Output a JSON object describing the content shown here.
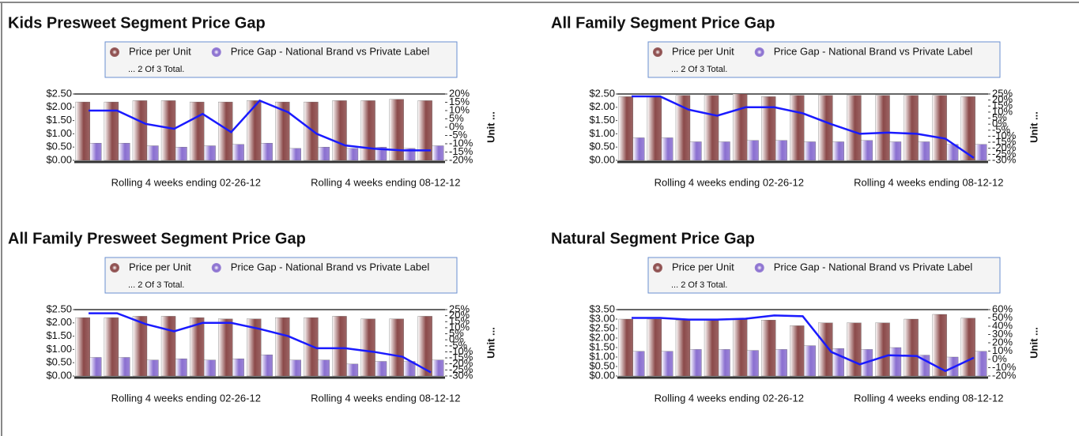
{
  "chart_data": [
    {
      "type": "bar",
      "title": "Kids Presweet Segment Price Gap",
      "legend_note": "... 2 Of 3 Total.",
      "y2label": "Unit ...",
      "categories": [
        null,
        null,
        null,
        "Rolling 4 weeks ending 02-26-12",
        null,
        null,
        null,
        null,
        null,
        null,
        "Rolling 4 weeks ending 08-12-12",
        null,
        null
      ],
      "series": [
        {
          "name": "Price per Unit",
          "color": "#8b4a4a",
          "values": [
            2.2,
            2.2,
            2.25,
            2.25,
            2.2,
            2.2,
            2.25,
            2.2,
            2.2,
            2.25,
            2.25,
            2.3,
            2.25
          ]
        },
        {
          "name": "Price Gap - National Brand vs Private Label",
          "color": "#8a6fd0",
          "values": [
            0.65,
            0.65,
            0.55,
            0.5,
            0.55,
            0.6,
            0.65,
            0.45,
            0.5,
            0.45,
            0.5,
            0.45,
            0.55
          ]
        },
        {
          "type": "line",
          "axis": "y2",
          "color": "#1a1aff",
          "values": [
            10,
            10,
            2,
            -1,
            8,
            -3,
            16,
            9,
            -4,
            -11,
            -13,
            -14,
            -14
          ]
        }
      ],
      "ylim": [
        0,
        2.5
      ],
      "yticks": [
        {
          "value": 0,
          "label": "$0.00"
        },
        {
          "value": 0.5,
          "label": "$0.50"
        },
        {
          "value": 1,
          "label": "$1.00"
        },
        {
          "value": 1.5,
          "label": "$1.50"
        },
        {
          "value": 2,
          "label": "$2.00"
        },
        {
          "value": 2.5,
          "label": "$2.50"
        }
      ],
      "y2lim": [
        -20,
        20
      ],
      "y2ticks": [
        {
          "value": 20,
          "label": "20%"
        },
        {
          "value": 15,
          "label": "15%"
        },
        {
          "value": 10,
          "label": "10%"
        },
        {
          "value": 5,
          "label": "5%"
        },
        {
          "value": 0,
          "label": "0%"
        },
        {
          "value": -5,
          "label": "-5%"
        },
        {
          "value": -10,
          "label": "-10%"
        },
        {
          "value": -15,
          "label": "-15%"
        },
        {
          "value": -20,
          "label": "-20%"
        }
      ]
    },
    {
      "type": "bar",
      "title": "All Family Segment Price Gap",
      "legend_note": "... 2 Of 3 Total.",
      "y2label": "Unit ...",
      "categories": [
        null,
        null,
        null,
        "Rolling 4 weeks ending 02-26-12",
        null,
        null,
        null,
        null,
        null,
        null,
        "Rolling 4 weeks ending 08-12-12",
        null,
        null
      ],
      "series": [
        {
          "name": "Price per Unit",
          "color": "#8b4a4a",
          "values": [
            2.4,
            2.4,
            2.45,
            2.45,
            2.5,
            2.4,
            2.45,
            2.45,
            2.45,
            2.45,
            2.45,
            2.45,
            2.4
          ]
        },
        {
          "name": "Price Gap - National Brand vs Private Label",
          "color": "#8a6fd0",
          "values": [
            0.85,
            0.85,
            0.7,
            0.7,
            0.75,
            0.75,
            0.7,
            0.7,
            0.75,
            0.7,
            0.7,
            0.6,
            0.6
          ]
        },
        {
          "type": "line",
          "axis": "y2",
          "color": "#1a1aff",
          "values": [
            23,
            23,
            12,
            7,
            14,
            14,
            9,
            0,
            -8,
            -7,
            -8,
            -12,
            -28
          ]
        }
      ],
      "ylim": [
        0,
        2.5
      ],
      "yticks": [
        {
          "value": 0,
          "label": "$0.00"
        },
        {
          "value": 0.5,
          "label": "$0.50"
        },
        {
          "value": 1,
          "label": "$1.00"
        },
        {
          "value": 1.5,
          "label": "$1.50"
        },
        {
          "value": 2,
          "label": "$2.00"
        },
        {
          "value": 2.5,
          "label": "$2.50"
        }
      ],
      "y2lim": [
        -30,
        25
      ],
      "y2ticks": [
        {
          "value": 25,
          "label": "25%"
        },
        {
          "value": 20,
          "label": "20%"
        },
        {
          "value": 15,
          "label": "15%"
        },
        {
          "value": 10,
          "label": "10%"
        },
        {
          "value": 5,
          "label": "5%"
        },
        {
          "value": 0,
          "label": "0%"
        },
        {
          "value": -5,
          "label": "-5%"
        },
        {
          "value": -10,
          "label": "-10%"
        },
        {
          "value": -15,
          "label": "-15%"
        },
        {
          "value": -20,
          "label": "-20%"
        },
        {
          "value": -25,
          "label": "-25%"
        },
        {
          "value": -30,
          "label": "-30%"
        }
      ]
    },
    {
      "type": "bar",
      "title": "All Family Presweet Segment Price Gap",
      "legend_note": "... 2 Of 3 Total.",
      "y2label": "Unit ...",
      "categories": [
        null,
        null,
        null,
        "Rolling 4 weeks ending 02-26-12",
        null,
        null,
        null,
        null,
        null,
        null,
        "Rolling 4 weeks ending 08-12-12",
        null,
        null
      ],
      "series": [
        {
          "name": "Price per Unit",
          "color": "#8b4a4a",
          "values": [
            2.2,
            2.2,
            2.25,
            2.25,
            2.2,
            2.15,
            2.15,
            2.2,
            2.2,
            2.25,
            2.15,
            2.15,
            2.25
          ]
        },
        {
          "name": "Price Gap - National Brand vs Private Label",
          "color": "#8a6fd0",
          "values": [
            0.7,
            0.7,
            0.6,
            0.65,
            0.6,
            0.65,
            0.8,
            0.6,
            0.6,
            0.45,
            0.55,
            0.55,
            0.6
          ]
        },
        {
          "type": "line",
          "axis": "y2",
          "color": "#1a1aff",
          "values": [
            22,
            22,
            13,
            7,
            14,
            14,
            9,
            3,
            -7,
            -7,
            -10,
            -14,
            -27
          ]
        }
      ],
      "ylim": [
        0,
        2.5
      ],
      "yticks": [
        {
          "value": 0,
          "label": "$0.00"
        },
        {
          "value": 0.5,
          "label": "$0.50"
        },
        {
          "value": 1,
          "label": "$1.00"
        },
        {
          "value": 1.5,
          "label": "$1.50"
        },
        {
          "value": 2,
          "label": "$2.00"
        },
        {
          "value": 2.5,
          "label": "$2.50"
        }
      ],
      "y2lim": [
        -30,
        25
      ],
      "y2ticks": [
        {
          "value": 25,
          "label": "25%"
        },
        {
          "value": 20,
          "label": "20%"
        },
        {
          "value": 15,
          "label": "15%"
        },
        {
          "value": 10,
          "label": "10%"
        },
        {
          "value": 5,
          "label": "5%"
        },
        {
          "value": 0,
          "label": "0%"
        },
        {
          "value": -5,
          "label": "-5%"
        },
        {
          "value": -10,
          "label": "-10%"
        },
        {
          "value": -15,
          "label": "-15%"
        },
        {
          "value": -20,
          "label": "-20%"
        },
        {
          "value": -25,
          "label": "-25%"
        },
        {
          "value": -30,
          "label": "-30%"
        }
      ]
    },
    {
      "type": "bar",
      "title": "Natural Segment Price Gap",
      "legend_note": "... 2 Of 3 Total.",
      "y2label": "Unit ...",
      "categories": [
        null,
        null,
        null,
        "Rolling 4 weeks ending 02-26-12",
        null,
        null,
        null,
        null,
        null,
        null,
        "Rolling 4 weeks ending 08-12-12",
        null,
        null
      ],
      "series": [
        {
          "name": "Price per Unit",
          "color": "#8b4a4a",
          "values": [
            3.0,
            3.0,
            2.95,
            2.95,
            3.0,
            2.95,
            2.65,
            2.8,
            2.8,
            2.8,
            3.0,
            3.25,
            3.05
          ]
        },
        {
          "name": "Price Gap - National Brand vs Private Label",
          "color": "#8a6fd0",
          "values": [
            1.3,
            1.3,
            1.4,
            1.4,
            1.35,
            1.4,
            1.6,
            1.45,
            1.4,
            1.5,
            1.1,
            1.0,
            1.3
          ]
        },
        {
          "type": "line",
          "axis": "y2",
          "color": "#1a1aff",
          "values": [
            50,
            50,
            48,
            48,
            49,
            53,
            52,
            9,
            -6,
            5,
            4,
            -14,
            2
          ]
        }
      ],
      "ylim": [
        0,
        3.5
      ],
      "yticks": [
        {
          "value": 0,
          "label": "$0.00"
        },
        {
          "value": 0.5,
          "label": "$0.50"
        },
        {
          "value": 1,
          "label": "$1.00"
        },
        {
          "value": 1.5,
          "label": "$1.50"
        },
        {
          "value": 2,
          "label": "$2.00"
        },
        {
          "value": 2.5,
          "label": "$2.50"
        },
        {
          "value": 3,
          "label": "$3.00"
        },
        {
          "value": 3.5,
          "label": "$3.50"
        }
      ],
      "y2lim": [
        -20,
        60
      ],
      "y2ticks": [
        {
          "value": 60,
          "label": "60%"
        },
        {
          "value": 50,
          "label": "50%"
        },
        {
          "value": 40,
          "label": "40%"
        },
        {
          "value": 30,
          "label": "30%"
        },
        {
          "value": 20,
          "label": "20%"
        },
        {
          "value": 10,
          "label": "10%"
        },
        {
          "value": 0,
          "label": "0%"
        },
        {
          "value": -10,
          "label": "-10%"
        },
        {
          "value": -20,
          "label": "-20%"
        }
      ]
    }
  ]
}
